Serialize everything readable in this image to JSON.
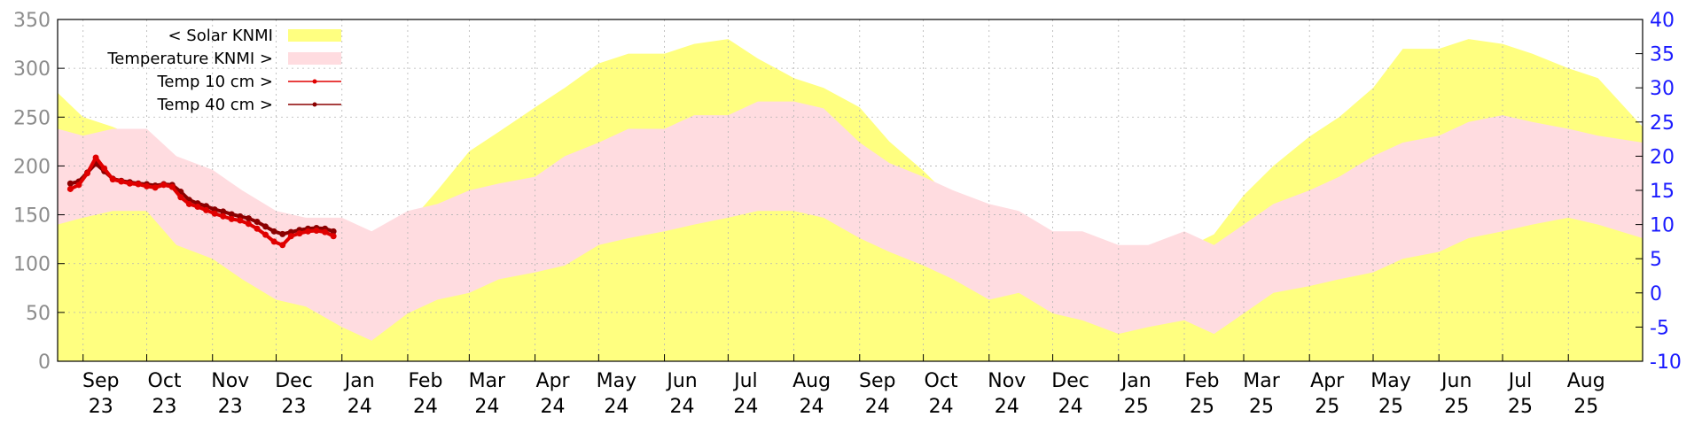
{
  "chart_data": {
    "type": "area",
    "grid": true,
    "legend_position": "top-left",
    "x_range": [
      "2023-08-20",
      "2025-09-05"
    ],
    "x_ticks": [
      {
        "date": "2023-09-01",
        "month": "Sep",
        "year": "23"
      },
      {
        "date": "2023-10-01",
        "month": "Oct",
        "year": "23"
      },
      {
        "date": "2023-11-01",
        "month": "Nov",
        "year": "23"
      },
      {
        "date": "2023-12-01",
        "month": "Dec",
        "year": "23"
      },
      {
        "date": "2024-01-01",
        "month": "Jan",
        "year": "24"
      },
      {
        "date": "2024-02-01",
        "month": "Feb",
        "year": "24"
      },
      {
        "date": "2024-03-01",
        "month": "Mar",
        "year": "24"
      },
      {
        "date": "2024-04-01",
        "month": "Apr",
        "year": "24"
      },
      {
        "date": "2024-05-01",
        "month": "May",
        "year": "24"
      },
      {
        "date": "2024-06-01",
        "month": "Jun",
        "year": "24"
      },
      {
        "date": "2024-07-01",
        "month": "Jul",
        "year": "24"
      },
      {
        "date": "2024-08-01",
        "month": "Aug",
        "year": "24"
      },
      {
        "date": "2024-09-01",
        "month": "Sep",
        "year": "24"
      },
      {
        "date": "2024-10-01",
        "month": "Oct",
        "year": "24"
      },
      {
        "date": "2024-11-01",
        "month": "Nov",
        "year": "24"
      },
      {
        "date": "2024-12-01",
        "month": "Dec",
        "year": "24"
      },
      {
        "date": "2025-01-01",
        "month": "Jan",
        "year": "25"
      },
      {
        "date": "2025-02-01",
        "month": "Feb",
        "year": "25"
      },
      {
        "date": "2025-03-01",
        "month": "Mar",
        "year": "25"
      },
      {
        "date": "2025-04-01",
        "month": "Apr",
        "year": "25"
      },
      {
        "date": "2025-05-01",
        "month": "May",
        "year": "25"
      },
      {
        "date": "2025-06-01",
        "month": "Jun",
        "year": "25"
      },
      {
        "date": "2025-07-01",
        "month": "Jul",
        "year": "25"
      },
      {
        "date": "2025-08-01",
        "month": "Aug",
        "year": "25"
      }
    ],
    "y_left": {
      "range": [
        0,
        350
      ],
      "ticks": [
        "0",
        "50",
        "100",
        "150",
        "200",
        "250",
        "300",
        "350"
      ],
      "color": "#8c8c8c"
    },
    "y_right": {
      "range": [
        -10,
        40
      ],
      "ticks": [
        "-10",
        "-5",
        "0",
        "5",
        "10",
        "15",
        "20",
        "25",
        "30",
        "35",
        "40"
      ],
      "color": "#1a1aff"
    },
    "legend": [
      {
        "label": "< Solar KNMI",
        "color": "#ffff80",
        "style": "area"
      },
      {
        "label": "Temperature KNMI >",
        "color": "#ffdce0",
        "style": "area"
      },
      {
        "label": "Temp 10 cm >",
        "color": "#e00000",
        "style": "line-points"
      },
      {
        "label": "Temp 40 cm >",
        "color": "#8b0000",
        "style": "line-points"
      }
    ],
    "series": [
      {
        "name": "< Solar KNMI",
        "axis": "left",
        "color": "#ffff80",
        "x": [
          "2023-08-20",
          "2023-09-01",
          "2023-09-15",
          "2023-10-01",
          "2023-10-15",
          "2023-11-01",
          "2023-11-15",
          "2023-12-01",
          "2023-12-15",
          "2024-01-01",
          "2024-01-15",
          "2024-02-01",
          "2024-02-15",
          "2024-03-01",
          "2024-03-15",
          "2024-04-01",
          "2024-04-15",
          "2024-05-01",
          "2024-05-15",
          "2024-06-01",
          "2024-06-15",
          "2024-07-01",
          "2024-07-15",
          "2024-08-01",
          "2024-08-15",
          "2024-09-01",
          "2024-09-15",
          "2024-10-01",
          "2024-10-15",
          "2024-11-01",
          "2024-11-15",
          "2024-12-01",
          "2024-12-15",
          "2025-01-01",
          "2025-01-15",
          "2025-02-01",
          "2025-02-15",
          "2025-03-01",
          "2025-03-15",
          "2025-04-01",
          "2025-04-15",
          "2025-05-01",
          "2025-05-15",
          "2025-06-01",
          "2025-06-15",
          "2025-07-01",
          "2025-07-15",
          "2025-08-01",
          "2025-08-15",
          "2025-09-05"
        ],
        "upper": [
          275,
          250,
          240,
          225,
          200,
          150,
          110,
          75,
          72,
          40,
          95,
          140,
          175,
          215,
          235,
          260,
          280,
          305,
          315,
          315,
          325,
          330,
          310,
          290,
          280,
          260,
          225,
          195,
          165,
          135,
          125,
          105,
          95,
          75,
          100,
          115,
          130,
          170,
          200,
          230,
          250,
          280,
          320,
          320,
          330,
          325,
          315,
          300,
          290,
          240
        ],
        "lower": [
          135,
          130,
          120,
          110,
          95,
          70,
          55,
          35,
          25,
          18,
          15,
          25,
          45,
          70,
          80,
          95,
          110,
          120,
          125,
          135,
          140,
          140,
          150,
          135,
          125,
          100,
          90,
          80,
          65,
          50,
          40,
          28,
          18,
          10,
          20,
          35,
          50,
          60,
          75,
          90,
          95,
          110,
          125,
          140,
          150,
          145,
          150,
          140,
          130,
          110
        ]
      },
      {
        "name": "Temperature KNMI >",
        "axis": "right",
        "color": "#ffdce0",
        "x": [
          "2023-08-20",
          "2023-09-01",
          "2023-09-15",
          "2023-10-01",
          "2023-10-15",
          "2023-11-01",
          "2023-11-15",
          "2023-12-01",
          "2023-12-15",
          "2024-01-01",
          "2024-01-15",
          "2024-02-01",
          "2024-02-15",
          "2024-03-01",
          "2024-03-15",
          "2024-04-01",
          "2024-04-15",
          "2024-05-01",
          "2024-05-15",
          "2024-06-01",
          "2024-06-15",
          "2024-07-01",
          "2024-07-15",
          "2024-08-01",
          "2024-08-15",
          "2024-09-01",
          "2024-09-15",
          "2024-10-01",
          "2024-10-15",
          "2024-11-01",
          "2024-11-15",
          "2024-12-01",
          "2024-12-15",
          "2025-01-01",
          "2025-01-15",
          "2025-02-01",
          "2025-02-15",
          "2025-03-01",
          "2025-03-15",
          "2025-04-01",
          "2025-04-15",
          "2025-05-01",
          "2025-05-15",
          "2025-06-01",
          "2025-06-15",
          "2025-07-01",
          "2025-07-15",
          "2025-08-01",
          "2025-08-15",
          "2025-09-05"
        ],
        "upper": [
          24,
          23,
          24,
          24,
          20,
          18,
          15,
          12,
          11,
          11,
          9,
          12,
          13,
          15,
          16,
          17,
          20,
          22,
          24,
          24,
          26,
          26,
          28,
          28,
          27,
          22,
          19,
          17,
          15,
          13,
          12,
          9,
          9,
          7,
          7,
          9,
          7,
          10,
          13,
          15,
          17,
          20,
          22,
          23,
          25,
          26,
          25,
          24,
          23,
          22
        ],
        "lower": [
          10,
          11,
          12,
          12,
          7,
          5,
          2,
          -1,
          -2,
          -5,
          -7,
          -3,
          -1,
          0,
          2,
          3,
          4,
          7,
          8,
          9,
          10,
          11,
          12,
          12,
          11,
          8,
          6,
          4,
          2,
          -1,
          0,
          -3,
          -4,
          -6,
          -5,
          -4,
          -6,
          -3,
          0,
          1,
          2,
          3,
          5,
          6,
          8,
          9,
          10,
          11,
          10,
          8
        ]
      },
      {
        "name": "Temp 10 cm >",
        "axis": "right",
        "color": "#e00000",
        "x": [
          "2023-08-26",
          "2023-08-30",
          "2023-09-03",
          "2023-09-07",
          "2023-09-11",
          "2023-09-15",
          "2023-09-19",
          "2023-09-23",
          "2023-09-27",
          "2023-10-01",
          "2023-10-05",
          "2023-10-09",
          "2023-10-13",
          "2023-10-17",
          "2023-10-21",
          "2023-10-25",
          "2023-10-29",
          "2023-11-02",
          "2023-11-06",
          "2023-11-10",
          "2023-11-14",
          "2023-11-18",
          "2023-11-22",
          "2023-11-26",
          "2023-11-30",
          "2023-12-04",
          "2023-12-08",
          "2023-12-12",
          "2023-12-16",
          "2023-12-20",
          "2023-12-24",
          "2023-12-28"
        ],
        "values": [
          15.2,
          15.8,
          17.5,
          19.8,
          18.2,
          16.6,
          16.3,
          16.0,
          15.9,
          15.6,
          15.4,
          15.8,
          15.5,
          14.0,
          13.0,
          12.6,
          12.1,
          11.6,
          11.2,
          10.8,
          10.6,
          10.1,
          9.4,
          8.5,
          7.5,
          7.0,
          8.3,
          8.7,
          9.0,
          9.1,
          8.9,
          8.3
        ]
      },
      {
        "name": "Temp 40 cm >",
        "axis": "right",
        "color": "#8b0000",
        "x": [
          "2023-08-26",
          "2023-08-30",
          "2023-09-03",
          "2023-09-07",
          "2023-09-11",
          "2023-09-15",
          "2023-09-19",
          "2023-09-23",
          "2023-09-27",
          "2023-10-01",
          "2023-10-05",
          "2023-10-09",
          "2023-10-13",
          "2023-10-17",
          "2023-10-21",
          "2023-10-25",
          "2023-10-29",
          "2023-11-02",
          "2023-11-06",
          "2023-11-10",
          "2023-11-14",
          "2023-11-18",
          "2023-11-22",
          "2023-11-26",
          "2023-11-30",
          "2023-12-04",
          "2023-12-08",
          "2023-12-12",
          "2023-12-16",
          "2023-12-20",
          "2023-12-24",
          "2023-12-28"
        ],
        "values": [
          16.0,
          16.3,
          17.6,
          18.9,
          17.8,
          16.7,
          16.4,
          16.2,
          16.0,
          15.9,
          15.7,
          15.9,
          15.8,
          14.8,
          13.6,
          13.1,
          12.7,
          12.2,
          11.9,
          11.5,
          11.2,
          10.9,
          10.4,
          9.7,
          9.0,
          8.6,
          8.9,
          9.2,
          9.4,
          9.5,
          9.4,
          9.0
        ]
      }
    ]
  }
}
